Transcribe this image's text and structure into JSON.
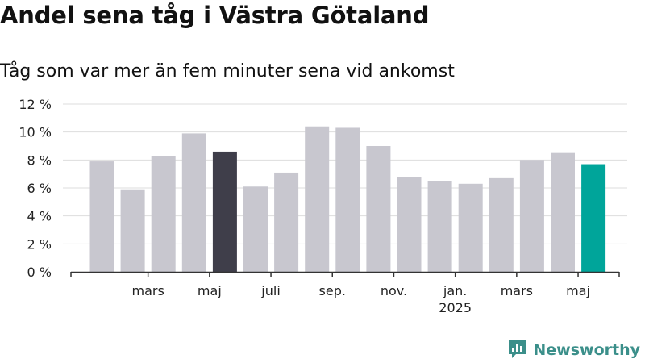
{
  "header": {
    "title": "Andel sena tåg i Västra Götaland",
    "subtitle": "Tåg som var mer än fem minuter sena vid ankomst"
  },
  "brand": {
    "name": "Newsworthy",
    "icon": "newsworthy-logo-icon",
    "color": "#3b8f8a"
  },
  "colors": {
    "default_bar": "#c8c7cf",
    "highlight_dark": "#3f3e4a",
    "highlight_current": "#00a59a",
    "grid": "#dddddd",
    "axis": "#333333"
  },
  "chart_data": {
    "type": "bar",
    "title": "Andel sena tåg i Västra Götaland",
    "subtitle": "Tåg som var mer än fem minuter sena vid ankomst",
    "ylim": [
      0,
      12
    ],
    "yticks": [
      0,
      2,
      4,
      6,
      8,
      10,
      12
    ],
    "ytick_labels": [
      "0 %",
      "2 %",
      "4 %",
      "6 %",
      "8 %",
      "10 %",
      "12 %"
    ],
    "grid": true,
    "categories": [
      "2024-02",
      "2024-03",
      "2024-04",
      "2024-05",
      "2024-06",
      "2024-07",
      "2024-08",
      "2024-09",
      "2024-10",
      "2024-11",
      "2024-12",
      "2025-01",
      "2025-02",
      "2025-03",
      "2025-04",
      "2025-05",
      "2025-06"
    ],
    "values": [
      7.9,
      5.9,
      8.3,
      9.9,
      8.6,
      6.1,
      7.1,
      10.4,
      10.3,
      9.0,
      6.8,
      6.5,
      6.3,
      6.7,
      8.0,
      8.5,
      7.7
    ],
    "highlights": {
      "2024-06": "highlight_dark",
      "2025-06": "highlight_current"
    },
    "x_tick_labels": [
      {
        "category": "2024-03",
        "label": "mars"
      },
      {
        "category": "2024-05",
        "label": "maj"
      },
      {
        "category": "2024-07",
        "label": "juli"
      },
      {
        "category": "2024-09",
        "label": "sep."
      },
      {
        "category": "2024-11",
        "label": "nov."
      },
      {
        "category": "2025-01",
        "label": "jan.",
        "sublabel": "2025"
      },
      {
        "category": "2025-03",
        "label": "mars"
      },
      {
        "category": "2025-05",
        "label": "maj"
      }
    ]
  }
}
